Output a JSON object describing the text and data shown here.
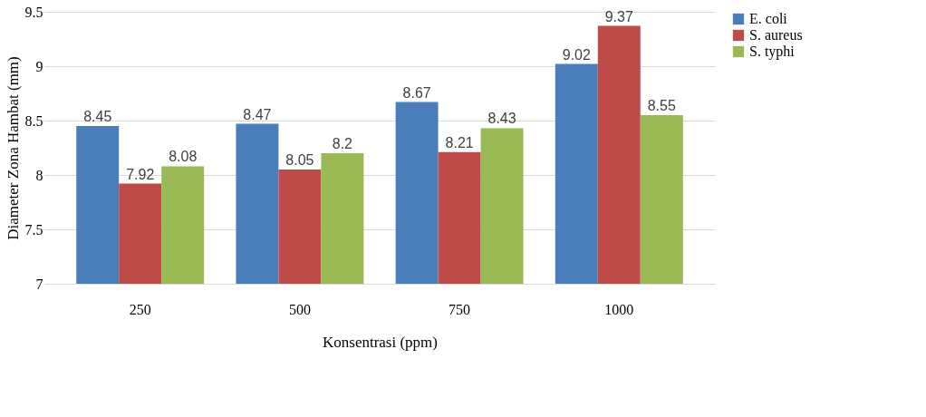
{
  "chart_data": {
    "type": "bar",
    "xlabel": "Konsentrasi (ppm)",
    "ylabel": "Diameter Zona Hambat (mm)",
    "categories": [
      "250",
      "500",
      "750",
      "1000"
    ],
    "series": [
      {
        "name": "E. coli",
        "color": "#4a7ebb",
        "values": [
          8.45,
          8.47,
          8.67,
          9.02
        ]
      },
      {
        "name": "S. aureus",
        "color": "#be4b48",
        "values": [
          7.92,
          8.05,
          8.21,
          9.37
        ]
      },
      {
        "name": "S. typhi",
        "color": "#98b954",
        "values": [
          8.08,
          8.2,
          8.43,
          8.55
        ]
      }
    ],
    "ylim": [
      7,
      9.5
    ],
    "yticks": [
      7,
      7.5,
      8,
      8.5,
      9,
      9.5
    ],
    "grid": "y",
    "legend": "right",
    "data_labels": true
  }
}
